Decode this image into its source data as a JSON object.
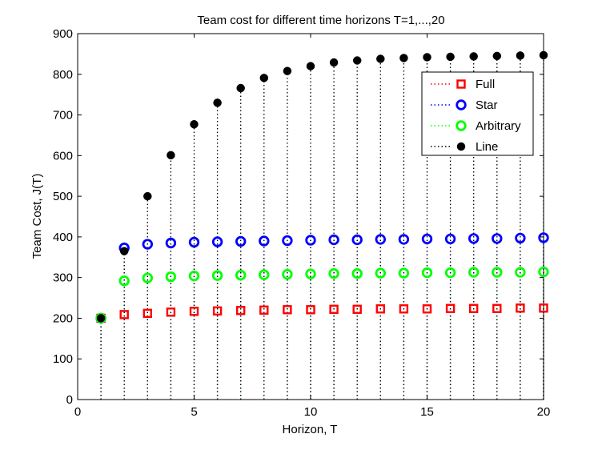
{
  "chart_data": {
    "type": "scatter",
    "title": "Team cost for different time horizons T=1,...,20",
    "xlabel": "Horizon, T",
    "ylabel": "Team Cost, J(T)",
    "xlim": [
      0,
      20
    ],
    "ylim": [
      0,
      900
    ],
    "xticks": [
      0,
      5,
      10,
      15,
      20
    ],
    "yticks": [
      0,
      100,
      200,
      300,
      400,
      500,
      600,
      700,
      800,
      900
    ],
    "grid": false,
    "legend_position": "top-right",
    "style": "stem (dotted stems, marker at top)",
    "x": [
      1,
      2,
      3,
      4,
      5,
      6,
      7,
      8,
      9,
      10,
      11,
      12,
      13,
      14,
      15,
      16,
      17,
      18,
      19,
      20
    ],
    "series": [
      {
        "name": "Full",
        "color": "#ff0000",
        "marker": "square",
        "values": [
          200,
          209,
          212,
          215,
          217,
          218,
          219,
          220,
          221,
          221,
          222,
          222,
          223,
          223,
          223,
          224,
          224,
          224,
          225,
          225
        ]
      },
      {
        "name": "Star",
        "color": "#0000ff",
        "marker": "circle",
        "values": [
          200,
          373,
          382,
          385,
          387,
          388,
          389,
          390,
          391,
          392,
          393,
          393,
          394,
          394,
          395,
          395,
          396,
          396,
          397,
          398
        ]
      },
      {
        "name": "Arbitrary",
        "color": "#00ff00",
        "marker": "circle",
        "values": [
          200,
          292,
          299,
          302,
          304,
          305,
          306,
          307,
          308,
          309,
          310,
          310,
          311,
          311,
          312,
          312,
          313,
          313,
          313,
          314
        ]
      },
      {
        "name": "Line",
        "color": "#000000",
        "marker": "filled-circle",
        "values": [
          200,
          365,
          500,
          601,
          677,
          730,
          766,
          791,
          808,
          820,
          829,
          834,
          838,
          840,
          842,
          843,
          844,
          845,
          846,
          847
        ]
      }
    ]
  }
}
